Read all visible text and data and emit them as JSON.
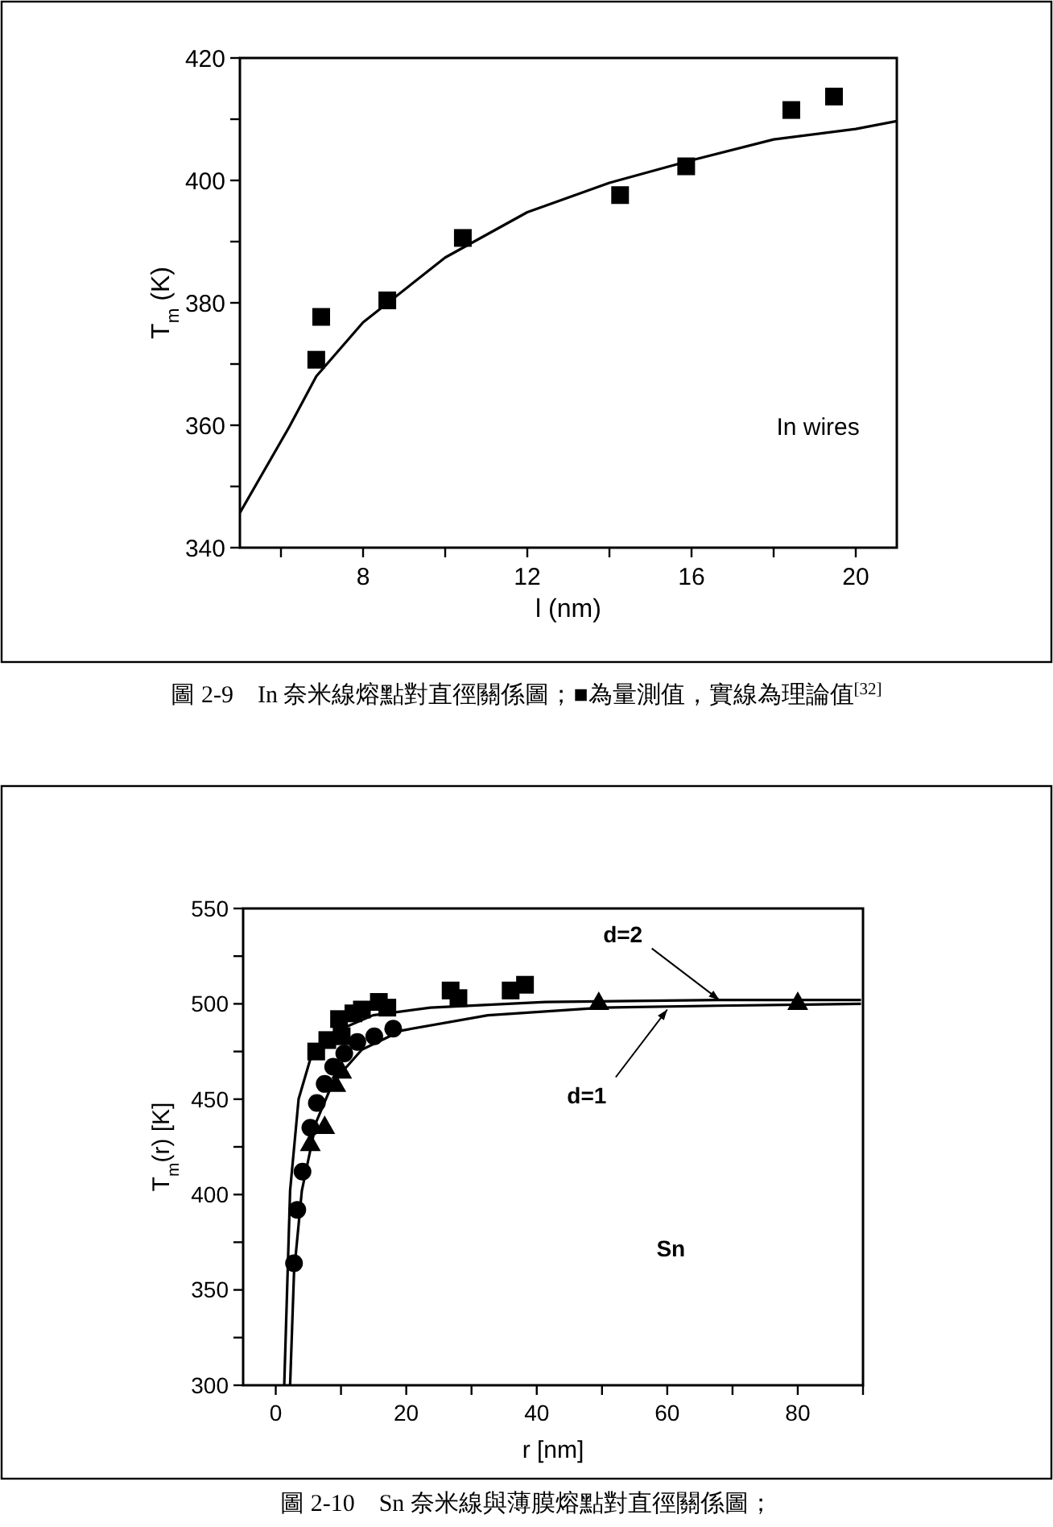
{
  "chart_data": [
    {
      "type": "scatter",
      "xlabel": "l (nm)",
      "ylabel": "T$_{m}$ (K)",
      "xlim": [
        5,
        21
      ],
      "ylim": [
        340,
        420
      ],
      "xticks": [
        {
          "value": 6,
          "label": null
        },
        8,
        {
          "value": 10,
          "label": null
        },
        12,
        {
          "value": 14,
          "label": null
        },
        16,
        {
          "value": 18,
          "label": null
        },
        20
      ],
      "yticks": [
        340,
        {
          "value": 350,
          "label": null
        },
        360,
        {
          "value": 370,
          "label": null
        },
        380,
        {
          "value": 390,
          "label": null
        },
        400,
        {
          "value": 410,
          "label": null
        },
        420
      ],
      "series": [
        {
          "type": "scatter",
          "marker": "square",
          "color": "#000000",
          "x": [
            6.86,
            6.98,
            8.59,
            10.43,
            14.26,
            15.87,
            18.43,
            19.47
          ],
          "values": [
            370.7,
            377.7,
            380.4,
            390.6,
            397.6,
            402.3,
            411.5,
            413.7
          ]
        },
        {
          "type": "line",
          "marker": "none",
          "line_style": "solid",
          "color": "#000000",
          "x": [
            5,
            6.2,
            6.86,
            8,
            10,
            12,
            14,
            16,
            18,
            20,
            21
          ],
          "values": [
            345.7,
            359.7,
            368,
            376.8,
            387.4,
            394.8,
            399.6,
            403.3,
            406.7,
            408.4,
            409.7
          ]
        }
      ],
      "annotations": [
        "In wires",
        "圖 2-9　In 奈米線熔點對直徑關係圖；■為量測值，實線為理論值$^{[32]}$"
      ]
    },
    {
      "type": "scatter",
      "xlabel": "r  [nm]",
      "ylabel": "T$_{m}$(r)  [K]",
      "xlim": [
        -5,
        90
      ],
      "ylim": [
        300,
        550
      ],
      "xticks": [
        0,
        {
          "value": 10,
          "label": null
        },
        20,
        {
          "value": 30,
          "label": null
        },
        40,
        {
          "value": 50,
          "label": null
        },
        60,
        {
          "value": 70,
          "label": null
        },
        80,
        {
          "value": 90,
          "label": null
        }
      ],
      "yticks": [
        300,
        {
          "value": 325,
          "label": null
        },
        350,
        {
          "value": 375,
          "label": null
        },
        400,
        {
          "value": 425,
          "label": null
        },
        450,
        {
          "value": 475,
          "label": null
        },
        500,
        {
          "value": 525,
          "label": null
        },
        550
      ],
      "series": [
        {
          "type": "scatter",
          "marker": "square",
          "color": "#000000",
          "x": [
            6.2,
            7.9,
            9.7,
            10.1,
            11.9,
            13.2,
            15.8,
            17.1,
            26.8,
            28,
            36,
            38.2
          ],
          "values": [
            475,
            481,
            492,
            483,
            495,
            497,
            501,
            498,
            507,
            503,
            507,
            510
          ]
        },
        {
          "type": "scatter",
          "marker": "circle",
          "color": "#000000",
          "x": [
            2.8,
            3.3,
            4.1,
            5.3,
            6.3,
            7.5,
            8.8,
            10.5,
            12.5,
            15.1,
            18
          ],
          "values": [
            364,
            392,
            412,
            435,
            448,
            458,
            467,
            474,
            480,
            483,
            487
          ]
        },
        {
          "type": "scatter",
          "marker": "triangle",
          "color": "#000000",
          "x": [
            5.3,
            7.5,
            9.2,
            10.1,
            49.5,
            80
          ],
          "values": [
            427,
            436,
            458,
            465,
            501,
            501
          ]
        },
        {
          "type": "line",
          "marker": "none",
          "line_style": "solid",
          "color": "#000000",
          "x": [
            1.3,
            2.2,
            3.5,
            5.3,
            8.8,
            14.9,
            23.7,
            41.3,
            67.7,
            89.7
          ],
          "values": [
            300,
            402,
            450,
            471,
            485,
            494,
            498,
            501,
            502,
            502
          ]
        },
        {
          "type": "line",
          "marker": "none",
          "line_style": "solid",
          "color": "#000000",
          "x": [
            2.2,
            2.8,
            4,
            6.2,
            8.8,
            13.2,
            19.3,
            32.5,
            50.1,
            67.7,
            89.7
          ],
          "values": [
            300,
            359,
            402,
            438,
            459,
            476,
            486,
            494,
            498,
            499,
            500
          ]
        }
      ],
      "annotations": [
        {
          "text": "d=2",
          "x": 68,
          "y": 502
        },
        {
          "text": "d=1",
          "x": 60,
          "y": 497
        },
        "Sn",
        "圖 2-10　Sn 奈米線與薄膜熔點對直徑關係圖；"
      ]
    }
  ]
}
